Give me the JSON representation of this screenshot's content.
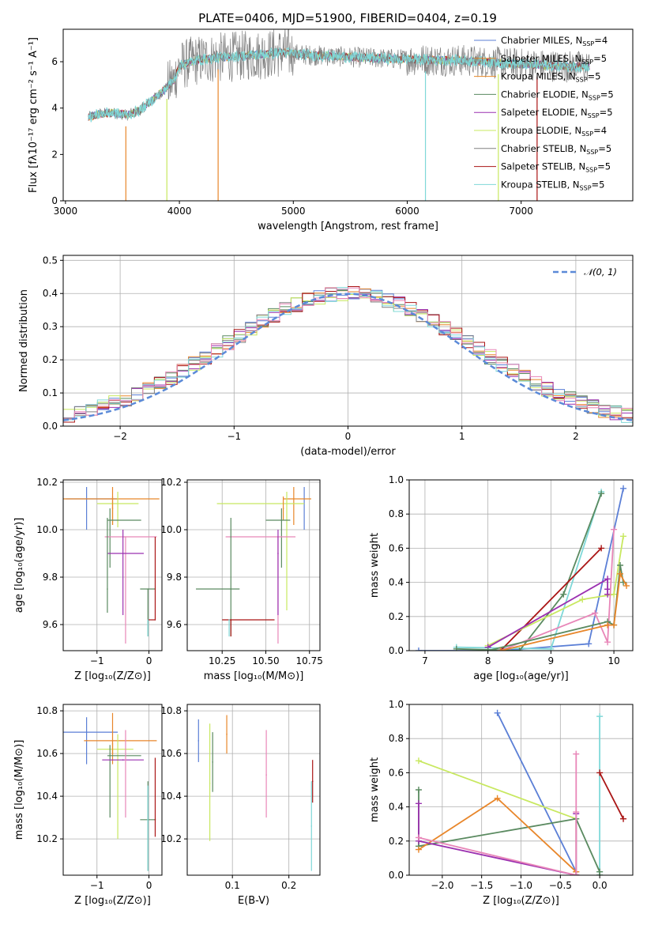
{
  "figure": {
    "title": "PLATE=0406, MJD=51900, FIBERID=0404, z=0.19"
  },
  "colors": {
    "chabrier_miles": "#5b7fd6",
    "salpeter_miles": "#e8862a",
    "kroupa_miles": "#e88a2a",
    "chabrier_elodie": "#5a8a60",
    "salpeter_elodie": "#9b30b0",
    "kroupa_elodie": "#c8e860",
    "chabrier_stelib": "#808080",
    "salpeter_stelib": "#aa1515",
    "kroupa_stelib": "#7fd8d8",
    "pink": "#e886b8",
    "normal_curve": "#5b8ad8",
    "grid": "#b0b0b0"
  },
  "chart_data": [
    {
      "id": "spectrum",
      "type": "line",
      "xlabel": "wavelength [Angstrom, rest frame]",
      "ylabel": "Flux [fλ10⁻¹⁷ erg cm⁻² s⁻¹ A⁻¹]",
      "xlim": [
        2980,
        7980
      ],
      "ylim": [
        0,
        7.4
      ],
      "xticks": [
        3000,
        4000,
        5000,
        6000,
        7000
      ],
      "yticks": [
        0,
        2,
        4,
        6
      ],
      "grid": false,
      "legend_position": "right",
      "legend": [
        {
          "label": "Chabrier MILES, N",
          "sub": "SSP",
          "suffix": "=4",
          "color": "#5b7fd6"
        },
        {
          "label": "Salpeter MILES, N",
          "sub": "SSP",
          "suffix": "=5",
          "color": "#e8862a"
        },
        {
          "label": "Kroupa MILES, N",
          "sub": "SSP",
          "suffix": "=5",
          "color": "#e88a2a"
        },
        {
          "label": "Chabrier ELODIE, N",
          "sub": "SSP",
          "suffix": "=5",
          "color": "#5a8a60"
        },
        {
          "label": "Salpeter ELODIE, N",
          "sub": "SSP",
          "suffix": "=5",
          "color": "#9b30b0"
        },
        {
          "label": "Kroupa ELODIE, N",
          "sub": "SSP",
          "suffix": "=4",
          "color": "#c8e860"
        },
        {
          "label": "Chabrier STELIB, N",
          "sub": "SSP",
          "suffix": "=5",
          "color": "#808080"
        },
        {
          "label": "Salpeter STELIB, N",
          "sub": "SSP",
          "suffix": "=5",
          "color": "#aa1515"
        },
        {
          "label": "Kroupa STELIB, N",
          "sub": "SSP",
          "suffix": "=5",
          "color": "#7fd8d8"
        }
      ],
      "continuum": [
        [
          3200,
          3.6
        ],
        [
          3300,
          3.75
        ],
        [
          3400,
          3.8
        ],
        [
          3550,
          3.7
        ],
        [
          3650,
          3.9
        ],
        [
          3750,
          4.3
        ],
        [
          3850,
          4.7
        ],
        [
          3950,
          5.2
        ],
        [
          4000,
          5.8
        ],
        [
          4100,
          6.0
        ],
        [
          4200,
          6.1
        ],
        [
          4400,
          6.2
        ],
        [
          4700,
          6.3
        ],
        [
          4900,
          6.4
        ],
        [
          5100,
          6.3
        ],
        [
          5500,
          6.2
        ],
        [
          6000,
          6.1
        ],
        [
          6500,
          6.05
        ],
        [
          7000,
          5.9
        ],
        [
          7400,
          5.8
        ],
        [
          7600,
          5.8
        ]
      ],
      "spikes": [
        [
          3530,
          0
        ],
        [
          3890,
          0
        ],
        [
          4340,
          0
        ],
        [
          6160,
          0
        ],
        [
          6800,
          0
        ],
        [
          7140,
          0
        ]
      ]
    },
    {
      "id": "residuals",
      "type": "area",
      "xlabel": "(data-model)/error",
      "ylabel": "Normed distribution",
      "xlim": [
        -2.5,
        2.5
      ],
      "ylim": [
        0,
        0.515
      ],
      "xticks": [
        -2,
        -1,
        0,
        1,
        2
      ],
      "yticks": [
        0.0,
        0.1,
        0.2,
        0.3,
        0.4,
        0.5
      ],
      "grid": true,
      "legend_position": "top-right",
      "legend": [
        {
          "label": "𝒩(0, 1)",
          "color": "#5b8ad8",
          "style": "dashed"
        }
      ],
      "bin_width": 0.1
    },
    {
      "id": "age_vs_Z",
      "type": "scatter",
      "xlabel": "Z [log₁₀(Z/Z⊙)]",
      "ylabel": "age  [log₁₀(age/yr)]",
      "xlim": [
        -1.65,
        0.25
      ],
      "ylim": [
        9.49,
        10.21
      ],
      "xticks": [
        -1,
        0
      ],
      "yticks": [
        9.6,
        9.8,
        10.0,
        10.2
      ],
      "grid": true,
      "points": [
        {
          "x": -1.2,
          "xerr": [
            0.4,
            0.6
          ],
          "y": 10.13,
          "yerr": [
            0.13,
            0.05
          ],
          "color": "#5b7fd6"
        },
        {
          "x": -0.7,
          "xerr": [
            1.0,
            0.9
          ],
          "y": 10.13,
          "yerr": [
            0.11,
            0.05
          ],
          "color": "#e8862a"
        },
        {
          "x": -0.6,
          "xerr": [
            0.4,
            0.4
          ],
          "y": 10.11,
          "yerr": [
            0.1,
            0.05
          ],
          "color": "#c8e860"
        },
        {
          "x": -0.7,
          "xerr": [
            0.0,
            0.0
          ],
          "y": 10.09,
          "yerr": [
            0.07,
            0.05
          ],
          "color": "#e88a2a"
        },
        {
          "x": -0.75,
          "xerr": [
            0.05,
            0.6
          ],
          "y": 10.04,
          "yerr": [
            0.2,
            0.05
          ],
          "color": "#5a8a60"
        },
        {
          "x": -0.45,
          "xerr": [
            0.4,
            0.6
          ],
          "y": 9.97,
          "yerr": [
            0.45,
            0.0
          ],
          "color": "#e886b8"
        },
        {
          "x": -0.5,
          "xerr": [
            0.3,
            0.4
          ],
          "y": 9.9,
          "yerr": [
            0.26,
            0.1
          ],
          "color": "#9b30b0"
        },
        {
          "x": -0.8,
          "xerr": [
            0.0,
            0.0
          ],
          "y": 9.75,
          "yerr": [
            0.1,
            0.3
          ],
          "color": "#5a8a60"
        },
        {
          "x": -0.02,
          "xerr": [
            0.15,
            0.15
          ],
          "y": 9.75,
          "yerr": [
            0.2,
            0.0
          ],
          "color": "#5a8a60"
        },
        {
          "x": 0.12,
          "xerr": [
            0.15,
            0.0
          ],
          "y": 9.62,
          "yerr": [
            0.0,
            0.35
          ],
          "color": "#aa1515"
        },
        {
          "x": -0.02,
          "xerr": [
            0.0,
            0.0
          ],
          "y": 9.62,
          "yerr": [
            0.07,
            0.0
          ],
          "color": "#7fd8d8"
        }
      ]
    },
    {
      "id": "age_vs_mass",
      "type": "scatter",
      "xlabel": "mass [log₁₀(M/M⊙)]",
      "xlim": [
        10.05,
        10.81
      ],
      "ylim": [
        9.49,
        10.21
      ],
      "xticks": [
        10.25,
        10.5,
        10.75
      ],
      "yticks": [
        9.6,
        9.8,
        10.0,
        10.2
      ],
      "grid": true,
      "points": [
        {
          "x": 10.72,
          "xerr": [
            0.0,
            0.0
          ],
          "y": 10.13,
          "yerr": [
            0.13,
            0.05
          ],
          "color": "#5b7fd6"
        },
        {
          "x": 10.66,
          "xerr": [
            0.06,
            0.1
          ],
          "y": 10.13,
          "yerr": [
            0.11,
            0.05
          ],
          "color": "#e8862a"
        },
        {
          "x": 10.62,
          "xerr": [
            0.4,
            0.1
          ],
          "y": 10.11,
          "yerr": [
            0.45,
            0.05
          ],
          "color": "#c8e860"
        },
        {
          "x": 10.6,
          "xerr": [
            0.0,
            0.0
          ],
          "y": 10.09,
          "yerr": [
            0.05,
            0.05
          ],
          "color": "#e88a2a"
        },
        {
          "x": 10.59,
          "xerr": [
            0.09,
            0.05
          ],
          "y": 10.04,
          "yerr": [
            0.2,
            0.05
          ],
          "color": "#5a8a60"
        },
        {
          "x": 10.57,
          "xerr": [
            0.3,
            0.1
          ],
          "y": 9.97,
          "yerr": [
            0.45,
            0.0
          ],
          "color": "#e886b8"
        },
        {
          "x": 10.57,
          "xerr": [
            0.0,
            0.0
          ],
          "y": 9.9,
          "yerr": [
            0.26,
            0.1
          ],
          "color": "#9b30b0"
        },
        {
          "x": 10.3,
          "xerr": [
            0.2,
            0.05
          ],
          "y": 9.75,
          "yerr": [
            0.2,
            0.3
          ],
          "color": "#5a8a60"
        },
        {
          "x": 10.3,
          "xerr": [
            0.05,
            0.25
          ],
          "y": 9.62,
          "yerr": [
            0.07,
            0.0
          ],
          "color": "#aa1515"
        },
        {
          "x": 10.29,
          "xerr": [
            0.0,
            0.0
          ],
          "y": 9.62,
          "yerr": [
            0.07,
            0.0
          ],
          "color": "#7fd8d8"
        }
      ]
    },
    {
      "id": "massweight_vs_age",
      "type": "line",
      "xlabel": "age  [log₁₀(age/yr)]",
      "ylabel": "mass weight",
      "xlim": [
        6.75,
        10.3
      ],
      "ylim": [
        0,
        1.0
      ],
      "xticks": [
        7,
        8,
        9,
        10
      ],
      "yticks": [
        0.0,
        0.2,
        0.4,
        0.6,
        0.8,
        1.0
      ],
      "grid": true,
      "series": [
        {
          "color": "#5b7fd6",
          "x": [
            6.9,
            8.2,
            9.6,
            10.15
          ],
          "y": [
            0.0,
            0.0,
            0.04,
            0.95
          ]
        },
        {
          "color": "#7fd8d8",
          "x": [
            7.5,
            9.0,
            9.8
          ],
          "y": [
            0.02,
            0.01,
            0.93
          ]
        },
        {
          "color": "#5a8a60",
          "x": [
            7.5,
            8.5,
            9.2,
            9.8
          ],
          "y": [
            0.01,
            0.0,
            0.33,
            0.92
          ]
        },
        {
          "color": "#aa1515",
          "x": [
            8.2,
            9.8
          ],
          "y": [
            0.0,
            0.6
          ]
        },
        {
          "color": "#c8e860",
          "x": [
            8.0,
            9.5,
            10.0,
            10.15
          ],
          "y": [
            0.03,
            0.3,
            0.33,
            0.67
          ]
        },
        {
          "color": "#9b30b0",
          "x": [
            8.0,
            9.9,
            9.9,
            9.9
          ],
          "y": [
            0.02,
            0.42,
            0.33,
            0.36
          ]
        },
        {
          "color": "#e886b8",
          "x": [
            8.2,
            9.7,
            9.9,
            10.0
          ],
          "y": [
            0.0,
            0.22,
            0.05,
            0.71
          ]
        },
        {
          "color": "#5a8a60",
          "x": [
            8.0,
            9.9,
            10.0,
            10.1,
            10.15
          ],
          "y": [
            0.0,
            0.17,
            0.15,
            0.5,
            0.4
          ]
        },
        {
          "color": "#e8862a",
          "x": [
            8.2,
            9.9,
            10.0,
            10.1,
            10.2
          ],
          "y": [
            0.0,
            0.15,
            0.15,
            0.45,
            0.38
          ]
        }
      ]
    },
    {
      "id": "mass_vs_Z",
      "type": "scatter",
      "xlabel": "Z [log₁₀(Z/Z⊙)]",
      "ylabel": "mass [log₁₀(M/M⊙)]",
      "xlim": [
        -1.65,
        0.25
      ],
      "ylim": [
        10.03,
        10.83
      ],
      "xticks": [
        -1,
        0
      ],
      "yticks": [
        10.2,
        10.4,
        10.6,
        10.8
      ],
      "grid": true,
      "points": [
        {
          "x": -1.2,
          "xerr": [
            0.45,
            0.6
          ],
          "y": 10.7,
          "yerr": [
            0.15,
            0.07
          ],
          "color": "#5b7fd6"
        },
        {
          "x": -0.7,
          "xerr": [
            0.55,
            0.85
          ],
          "y": 10.66,
          "yerr": [
            0.06,
            0.13
          ],
          "color": "#e8862a"
        },
        {
          "x": -0.6,
          "xerr": [
            0.4,
            0.3
          ],
          "y": 10.62,
          "yerr": [
            0.42,
            0.07
          ],
          "color": "#c8e860"
        },
        {
          "x": -0.7,
          "xerr": [
            0.0,
            0.0
          ],
          "y": 10.6,
          "yerr": [
            0.05,
            0.05
          ],
          "color": "#e88a2a"
        },
        {
          "x": -0.75,
          "xerr": [
            0.05,
            0.6
          ],
          "y": 10.59,
          "yerr": [
            0.29,
            0.05
          ],
          "color": "#5a8a60"
        },
        {
          "x": -0.5,
          "xerr": [
            0.4,
            0.4
          ],
          "y": 10.57,
          "yerr": [
            0.0,
            0.0
          ],
          "color": "#9b30b0"
        },
        {
          "x": -0.45,
          "xerr": [
            0.0,
            0.0
          ],
          "y": 10.57,
          "yerr": [
            0.27,
            0.14
          ],
          "color": "#e886b8"
        },
        {
          "x": -0.02,
          "xerr": [
            0.15,
            0.15
          ],
          "y": 10.29,
          "yerr": [
            0.24,
            0.18
          ],
          "color": "#5a8a60"
        },
        {
          "x": 0.12,
          "xerr": [
            0.0,
            0.0
          ],
          "y": 10.29,
          "yerr": [
            0.08,
            0.29
          ],
          "color": "#aa1515"
        },
        {
          "x": -0.02,
          "xerr": [
            0.0,
            0.0
          ],
          "y": 10.29,
          "yerr": [
            0.24,
            0.16
          ],
          "color": "#7fd8d8"
        }
      ]
    },
    {
      "id": "mass_vs_ebv",
      "type": "scatter",
      "xlabel": "E(B-V)",
      "xlim": [
        0.02,
        0.255
      ],
      "ylim": [
        10.03,
        10.83
      ],
      "xticks": [
        0.1,
        0.2
      ],
      "yticks": [
        10.2,
        10.4,
        10.6,
        10.8
      ],
      "grid": true,
      "points": [
        {
          "x": 0.04,
          "y": 10.66,
          "yerr": [
            0.1,
            0.1
          ],
          "color": "#5b7fd6"
        },
        {
          "x": 0.06,
          "y": 10.46,
          "yerr": [
            0.27,
            0.28
          ],
          "color": "#c8e860"
        },
        {
          "x": 0.065,
          "y": 10.56,
          "yerr": [
            0.14,
            0.14
          ],
          "color": "#5a8a60"
        },
        {
          "x": 0.09,
          "y": 10.69,
          "yerr": [
            0.09,
            0.09
          ],
          "color": "#e8862a"
        },
        {
          "x": 0.16,
          "y": 10.5,
          "yerr": [
            0.2,
            0.21
          ],
          "color": "#e886b8"
        },
        {
          "x": 0.24,
          "y": 10.26,
          "yerr": [
            0.21,
            0.21
          ],
          "color": "#7fd8d8"
        },
        {
          "x": 0.242,
          "y": 10.47,
          "yerr": [
            0.1,
            0.1
          ],
          "color": "#aa1515"
        }
      ]
    },
    {
      "id": "massweight_vs_Z",
      "type": "line",
      "xlabel": "Z [log₁₀(Z/Z⊙)]",
      "ylabel": "mass weight",
      "xlim": [
        -2.42,
        0.42
      ],
      "ylim": [
        0,
        1.0
      ],
      "xticks": [
        -2.0,
        -1.5,
        -1.0,
        -0.5,
        0.0
      ],
      "yticks": [
        0.0,
        0.2,
        0.4,
        0.6,
        0.8,
        1.0
      ],
      "grid": true,
      "series": [
        {
          "color": "#5b7fd6",
          "x": [
            -1.3,
            -0.3,
            -0.3
          ],
          "y": [
            0.95,
            0.02,
            0.0
          ]
        },
        {
          "color": "#7fd8d8",
          "x": [
            0.0,
            0.0,
            0.0
          ],
          "y": [
            0.93,
            0.02,
            0.0
          ]
        },
        {
          "color": "#aa1515",
          "x": [
            0.0,
            0.3
          ],
          "y": [
            0.6,
            0.33
          ]
        },
        {
          "color": "#c8e860",
          "x": [
            -2.3,
            -0.3,
            -0.3
          ],
          "y": [
            0.67,
            0.33,
            0.02
          ]
        },
        {
          "color": "#5a8a60",
          "x": [
            -2.3,
            -2.3,
            -0.3,
            0.0,
            0.0
          ],
          "y": [
            0.5,
            0.17,
            0.33,
            0.02,
            0.0
          ]
        },
        {
          "color": "#e8862a",
          "x": [
            -2.3,
            -1.3,
            -0.3,
            -0.3
          ],
          "y": [
            0.15,
            0.45,
            0.02,
            0.0
          ]
        },
        {
          "color": "#9b30b0",
          "x": [
            -2.3,
            -2.3,
            -0.3,
            -0.3
          ],
          "y": [
            0.42,
            0.2,
            0.0,
            0.36
          ]
        },
        {
          "color": "#e886b8",
          "x": [
            -2.3,
            -0.3,
            -0.3,
            -0.3
          ],
          "y": [
            0.22,
            0.0,
            0.71,
            0.37
          ]
        }
      ]
    }
  ]
}
